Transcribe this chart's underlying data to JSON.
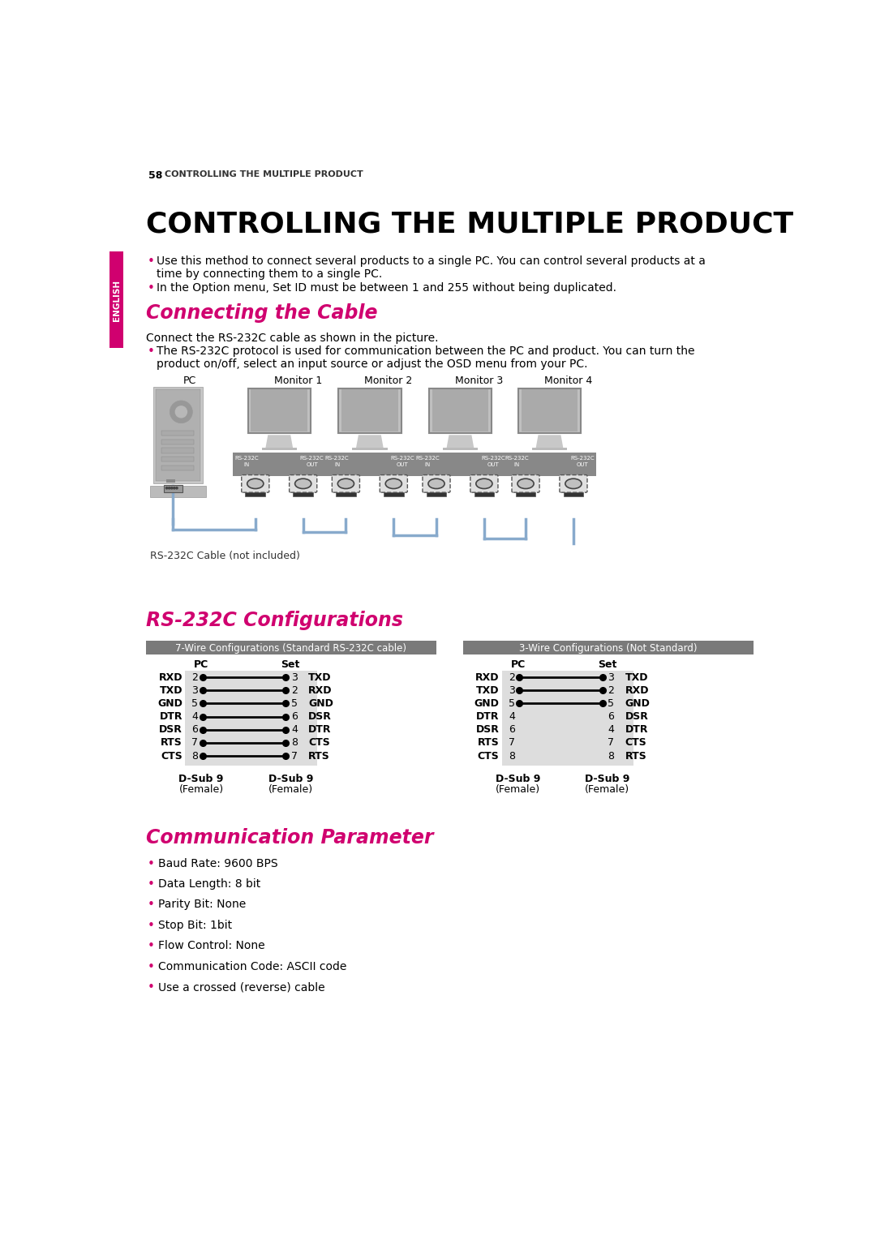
{
  "page_num": "58",
  "page_header": "CONTROLLING THE MULTIPLE PRODUCT",
  "main_title": "CONTROLLING THE MULTIPLE PRODUCT",
  "sidebar_text": "ENGLISH",
  "sidebar_color": "#d0006f",
  "section1_title": "Connecting the Cable",
  "section1_color": "#d0006f",
  "section1_intro": "Connect the RS-232C cable as shown in the picture.",
  "section1_bullet1a": "The RS-232C protocol is used for communication between the PC and product. You can turn the",
  "section1_bullet1b": "product on/off, select an input source or adjust the OSD menu from your PC.",
  "intro_bullet1a": "Use this method to connect several products to a single PC. You can control several products at a",
  "intro_bullet1b": "time by connecting them to a single PC.",
  "intro_bullet2": "In the Option menu, Set ID must be between 1 and 255 without being duplicated.",
  "diagram_labels": [
    "PC",
    "Monitor 1",
    "Monitor 2",
    "Monitor 3",
    "Monitor 4"
  ],
  "cable_label": "RS-232C Cable (not included)",
  "section2_title": "RS-232C Configurations",
  "section2_color": "#d0006f",
  "config_header1": "7-Wire Configurations (Standard RS-232C cable)",
  "config_header2": "3-Wire Configurations (Not Standard)",
  "wire7_pc_labels": [
    "RXD",
    "TXD",
    "GND",
    "DTR",
    "DSR",
    "RTS",
    "CTS"
  ],
  "wire7_pc_pins": [
    2,
    3,
    5,
    4,
    6,
    7,
    8
  ],
  "wire7_set_pins": [
    3,
    2,
    5,
    6,
    4,
    8,
    7
  ],
  "wire7_set_labels": [
    "TXD",
    "RXD",
    "GND",
    "DSR",
    "DTR",
    "CTS",
    "RTS"
  ],
  "wire7_connected": [
    true,
    true,
    true,
    true,
    true,
    true,
    true
  ],
  "wire3_pc_labels": [
    "RXD",
    "TXD",
    "GND",
    "DTR",
    "DSR",
    "RTS",
    "CTS"
  ],
  "wire3_pc_pins": [
    2,
    3,
    5,
    4,
    6,
    7,
    8
  ],
  "wire3_set_pins": [
    3,
    2,
    5,
    6,
    4,
    7,
    8
  ],
  "wire3_set_labels": [
    "TXD",
    "RXD",
    "GND",
    "DSR",
    "DTR",
    "CTS",
    "RTS"
  ],
  "wire3_connected": [
    true,
    true,
    true,
    false,
    false,
    false,
    false
  ],
  "section3_title": "Communication Parameter",
  "section3_color": "#d0006f",
  "comm_bullets": [
    "Baud Rate: 9600 BPS",
    "Data Length: 8 bit",
    "Parity Bit: None",
    "Stop Bit: 1bit",
    "Flow Control: None",
    "Communication Code: ASCII code",
    "Use a crossed (reverse) cable"
  ],
  "bg_color": "#ffffff",
  "text_color": "#000000",
  "bullet_color": "#d0006f"
}
